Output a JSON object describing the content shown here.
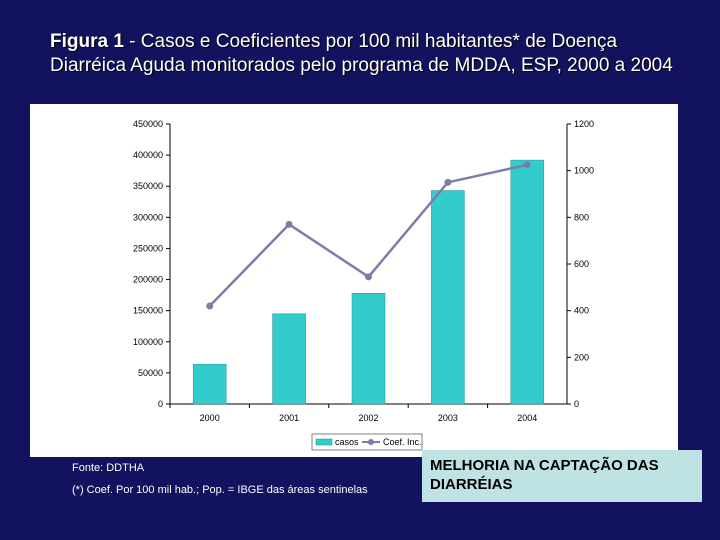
{
  "slide": {
    "title_prefix": "Figura 1",
    "title_rest": " - Casos e Coeficientes por 100 mil habitantes* de Doença Diarréica Aguda monitorados pelo programa de MDDA, ESP, 2000 a 2004",
    "source_note": "Fonte: DDTHA",
    "footnote": "(*) Coef. Por 100 mil hab.; Pop. = IBGE das áreas sentinelas",
    "callout": "MELHORIA NA CAPTAÇÃO DAS DIARRÉIAS"
  },
  "colors": {
    "background": "#12125e",
    "bar": "#33cccc",
    "line": "#7b7fa8"
  },
  "chart_data": {
    "type": "bar",
    "categories": [
      "2000",
      "2001",
      "2002",
      "2003",
      "2004"
    ],
    "series": [
      {
        "name": "casos",
        "type": "bar",
        "axis": "left",
        "values": [
          64000,
          145000,
          178000,
          343000,
          392000
        ]
      },
      {
        "name": "Coef. Inc.",
        "type": "line",
        "axis": "right",
        "values": [
          420,
          770,
          545,
          950,
          1025
        ]
      }
    ],
    "y_left": {
      "range": [
        0,
        450000
      ],
      "ticks": [
        0,
        50000,
        100000,
        150000,
        200000,
        250000,
        300000,
        350000,
        400000,
        450000
      ]
    },
    "y_right": {
      "range": [
        0,
        1200
      ],
      "ticks": [
        0,
        200,
        400,
        600,
        800,
        1000,
        1200
      ]
    },
    "title": "",
    "xlabel": "",
    "ylabel": "",
    "grid": false,
    "legend_position": "bottom-right"
  }
}
